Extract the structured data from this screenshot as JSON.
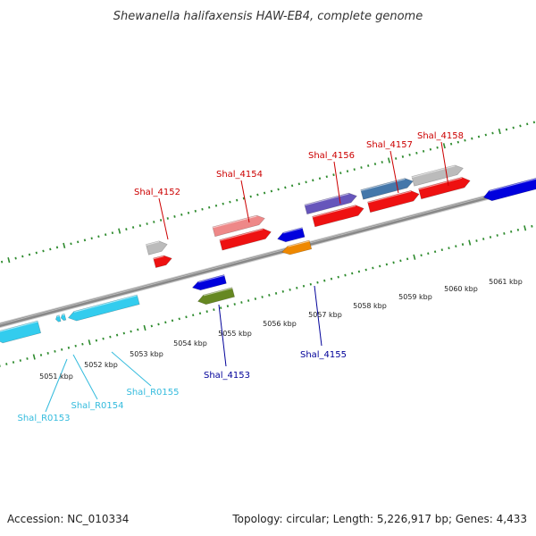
{
  "title": "Shewanella halifaxensis HAW-EB4, complete genome",
  "footer": {
    "accession": "Accession: NC_010334",
    "summary": "Topology: circular; Length: 5,226,917 bp; Genes: 4,433"
  },
  "colors": {
    "backbone": "#888888",
    "tick": "#2e8b2e",
    "label_top": "#cc0000",
    "label_bottom": "#000099",
    "label_rna": "#33bbdd"
  },
  "scale_labels": [
    "5051 kbp",
    "5052 kbp",
    "5053 kbp",
    "5054 kbp",
    "5055 kbp",
    "5056 kbp",
    "5057 kbp",
    "5058 kbp",
    "5059 kbp",
    "5060 kbp",
    "5061 kbp"
  ],
  "features": [
    {
      "name": "",
      "color": "#33ccee",
      "strand": "reverse"
    },
    {
      "name": "",
      "color": "#33ccee",
      "strand": "reverse"
    },
    {
      "name": "",
      "color": "#33ccee",
      "strand": "reverse"
    },
    {
      "name": "",
      "color": "#33ccee",
      "strand": "reverse"
    },
    {
      "name": "",
      "color": "#bbbbbb",
      "strand": "forward"
    },
    {
      "name": "",
      "color": "#ee1111",
      "strand": "forward"
    },
    {
      "name": "",
      "color": "#0000dd",
      "strand": "reverse"
    },
    {
      "name": "",
      "color": "#668822",
      "strand": "reverse"
    },
    {
      "name": "",
      "color": "#ee8888",
      "strand": "forward"
    },
    {
      "name": "",
      "color": "#ee1111",
      "strand": "forward"
    },
    {
      "name": "",
      "color": "#0000dd",
      "strand": "reverse"
    },
    {
      "name": "",
      "color": "#ee8800",
      "strand": "reverse"
    },
    {
      "name": "",
      "color": "#6655bb",
      "strand": "forward"
    },
    {
      "name": "",
      "color": "#ee1111",
      "strand": "forward"
    },
    {
      "name": "",
      "color": "#4477aa",
      "strand": "forward"
    },
    {
      "name": "",
      "color": "#ee1111",
      "strand": "forward"
    },
    {
      "name": "",
      "color": "#bbbbbb",
      "strand": "forward"
    },
    {
      "name": "",
      "color": "#ee1111",
      "strand": "forward"
    },
    {
      "name": "",
      "color": "#0000dd",
      "strand": "reverse"
    }
  ],
  "labels": [
    {
      "text": "Shal_4152",
      "group": "top"
    },
    {
      "text": "Shal_4154",
      "group": "top"
    },
    {
      "text": "Shal_4156",
      "group": "top"
    },
    {
      "text": "Shal_4157",
      "group": "top"
    },
    {
      "text": "Shal_4158",
      "group": "top"
    },
    {
      "text": "Shal_4153",
      "group": "bottom"
    },
    {
      "text": "Shal_4155",
      "group": "bottom"
    },
    {
      "text": "Shal_R0153",
      "group": "rna"
    },
    {
      "text": "Shal_R0154",
      "group": "rna"
    },
    {
      "text": "Shal_R0155",
      "group": "rna"
    }
  ]
}
